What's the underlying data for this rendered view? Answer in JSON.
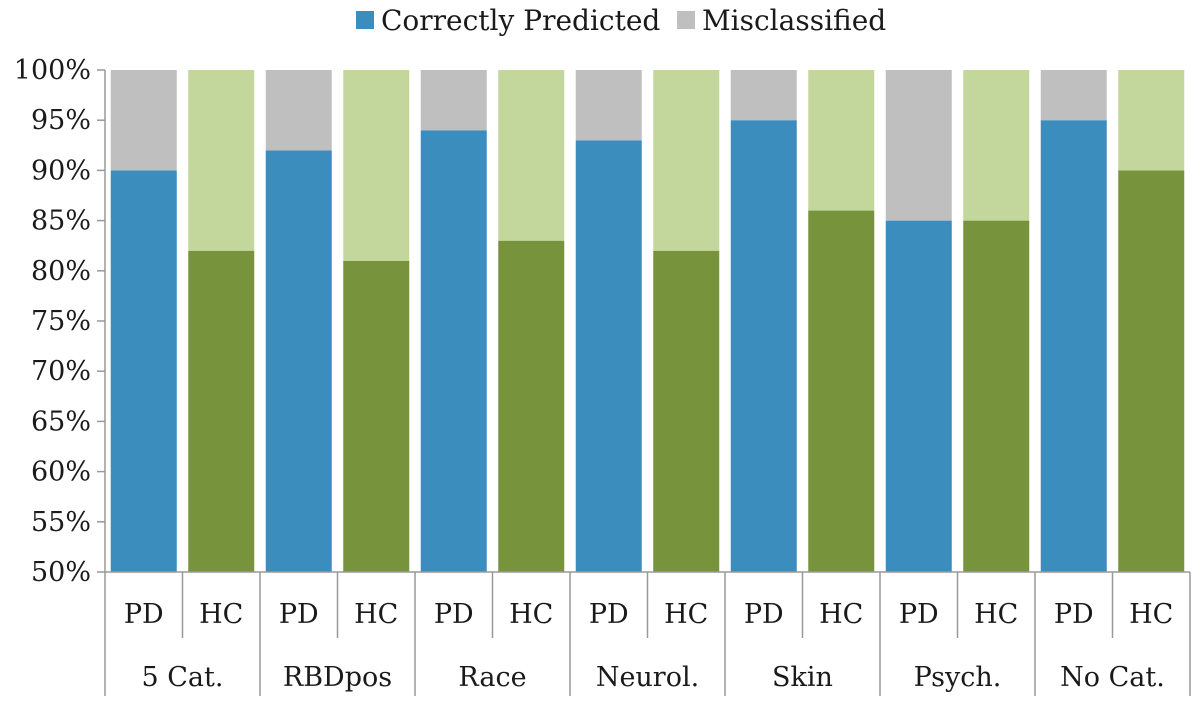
{
  "chart_data": {
    "type": "bar",
    "stacked": true,
    "percent_stacked": true,
    "x_axis": "category",
    "y_axis": "percent",
    "ylim": [
      50,
      100
    ],
    "ytick_values": [
      50,
      55,
      60,
      65,
      70,
      75,
      80,
      85,
      90,
      95,
      100
    ],
    "ytick_labels": [
      "50%",
      "55%",
      "60%",
      "65%",
      "70%",
      "75%",
      "80%",
      "85%",
      "90%",
      "95%",
      "100%"
    ],
    "grid": false,
    "legend": {
      "placement": "top-center",
      "entries": [
        {
          "name": "Correctly Predicted",
          "color": "#3a8dbd"
        },
        {
          "name": "Misclassified",
          "color": "#bfbfbf"
        }
      ]
    },
    "groups": [
      {
        "label": "5 Cat.",
        "bars": [
          {
            "label": "PD",
            "correct": 90,
            "misclassified": 10
          },
          {
            "label": "HC",
            "correct": 82,
            "misclassified": 18
          }
        ]
      },
      {
        "label": "RBDpos",
        "bars": [
          {
            "label": "PD",
            "correct": 92,
            "misclassified": 8
          },
          {
            "label": "HC",
            "correct": 81,
            "misclassified": 19
          }
        ]
      },
      {
        "label": "Race",
        "bars": [
          {
            "label": "PD",
            "correct": 94,
            "misclassified": 6
          },
          {
            "label": "HC",
            "correct": 83,
            "misclassified": 17
          }
        ]
      },
      {
        "label": "Neurol.",
        "bars": [
          {
            "label": "PD",
            "correct": 93,
            "misclassified": 7
          },
          {
            "label": "HC",
            "correct": 82,
            "misclassified": 18
          }
        ]
      },
      {
        "label": "Skin",
        "bars": [
          {
            "label": "PD",
            "correct": 95,
            "misclassified": 5
          },
          {
            "label": "HC",
            "correct": 86,
            "misclassified": 14
          }
        ]
      },
      {
        "label": "Psych.",
        "bars": [
          {
            "label": "PD",
            "correct": 85,
            "misclassified": 15
          },
          {
            "label": "HC",
            "correct": 85,
            "misclassified": 15
          }
        ]
      },
      {
        "label": "No Cat.",
        "bars": [
          {
            "label": "PD",
            "correct": 95,
            "misclassified": 5
          },
          {
            "label": "HC",
            "correct": 90,
            "misclassified": 10
          }
        ]
      }
    ],
    "colors": {
      "PD": {
        "correct": "#3a8dbd",
        "misclassified": "#bfbfbf"
      },
      "HC": {
        "correct": "#77933c",
        "misclassified": "#c3d69b"
      },
      "axis": "#999999",
      "text": "#1a1a1a"
    }
  }
}
